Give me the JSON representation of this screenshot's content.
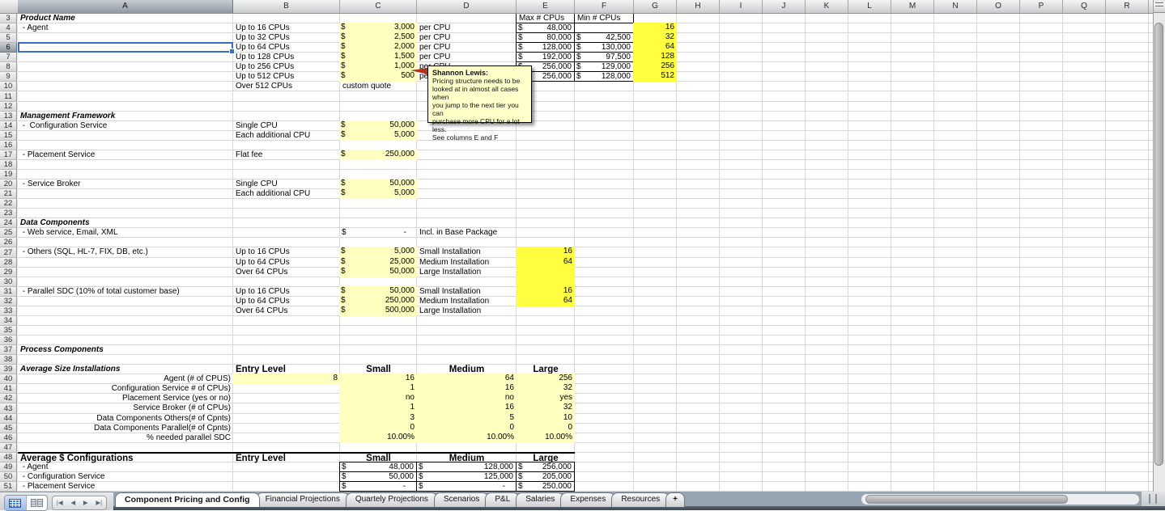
{
  "colors": {
    "fill_pale": "#ffffc0",
    "fill_bright": "#ffff3f",
    "selection_blue": "#3a6fc8",
    "comment_bg": "#ffffca",
    "comment_red": "#b5301c",
    "gridline": "#d7d7d7",
    "tab_bar": "#97a5b2"
  },
  "sheet": {
    "columns": [
      "A",
      "B",
      "C",
      "D",
      "E",
      "F",
      "G",
      "H",
      "I",
      "J",
      "K",
      "L",
      "M",
      "N",
      "O",
      "P",
      "Q",
      "R"
    ],
    "first_row": 3,
    "last_row": 51,
    "currency_symbol": "$",
    "cells": [
      {
        "r": 3,
        "c": "A",
        "v": "Product Name",
        "s": "sec"
      },
      {
        "r": 3,
        "c": "E",
        "v": "Max # CPUs",
        "s": "box"
      },
      {
        "r": 3,
        "c": "F",
        "v": "Min # CPUs",
        "s": "box"
      },
      {
        "r": 4,
        "c": "A",
        "v": " - Agent"
      },
      {
        "r": 4,
        "c": "B",
        "v": "Up to 16 CPUs"
      },
      {
        "r": 4,
        "c": "C",
        "m": "3,000",
        "f": "pale"
      },
      {
        "r": 4,
        "c": "D",
        "v": "per CPU"
      },
      {
        "r": 4,
        "c": "E",
        "m": "48,000",
        "s": "box"
      },
      {
        "r": 4,
        "c": "F",
        "v": "",
        "s": "box"
      },
      {
        "r": 4,
        "c": "G",
        "v": "16",
        "s": "ar",
        "f": "bright"
      },
      {
        "r": 5,
        "c": "B",
        "v": "Up to 32 CPUs"
      },
      {
        "r": 5,
        "c": "C",
        "m": "2,500",
        "f": "pale"
      },
      {
        "r": 5,
        "c": "D",
        "v": "per CPU"
      },
      {
        "r": 5,
        "c": "E",
        "m": "80,000",
        "s": "box"
      },
      {
        "r": 5,
        "c": "F",
        "m": "42,500",
        "s": "box"
      },
      {
        "r": 5,
        "c": "G",
        "v": "32",
        "s": "ar",
        "f": "bright"
      },
      {
        "r": 6,
        "c": "B",
        "v": "Up to 64 CPUs"
      },
      {
        "r": 6,
        "c": "C",
        "m": "2,000",
        "f": "pale"
      },
      {
        "r": 6,
        "c": "D",
        "v": "per CPU"
      },
      {
        "r": 6,
        "c": "E",
        "m": "128,000",
        "s": "box"
      },
      {
        "r": 6,
        "c": "F",
        "m": "130,000",
        "s": "box"
      },
      {
        "r": 6,
        "c": "G",
        "v": "64",
        "s": "ar",
        "f": "bright"
      },
      {
        "r": 7,
        "c": "B",
        "v": "Up to 128 CPUs"
      },
      {
        "r": 7,
        "c": "C",
        "m": "1,500",
        "f": "pale"
      },
      {
        "r": 7,
        "c": "D",
        "v": "per CPU"
      },
      {
        "r": 7,
        "c": "E",
        "m": "192,000",
        "s": "box"
      },
      {
        "r": 7,
        "c": "F",
        "m": "97,500",
        "s": "box"
      },
      {
        "r": 7,
        "c": "G",
        "v": "128",
        "s": "ar",
        "f": "bright"
      },
      {
        "r": 8,
        "c": "B",
        "v": "Up to 256 CPUs"
      },
      {
        "r": 8,
        "c": "C",
        "m": "1,000",
        "f": "pale"
      },
      {
        "r": 8,
        "c": "D",
        "v": "per CPU"
      },
      {
        "r": 8,
        "c": "E",
        "m": "256,000",
        "s": "box"
      },
      {
        "r": 8,
        "c": "F",
        "m": "129,000",
        "s": "box"
      },
      {
        "r": 8,
        "c": "G",
        "v": "256",
        "s": "ar",
        "f": "bright"
      },
      {
        "r": 9,
        "c": "B",
        "v": "Up to 512 CPUs"
      },
      {
        "r": 9,
        "c": "C",
        "m": "500",
        "f": "pale"
      },
      {
        "r": 9,
        "c": "D",
        "v": "per CPU"
      },
      {
        "r": 9,
        "c": "E",
        "m": "256,000",
        "s": "box"
      },
      {
        "r": 9,
        "c": "F",
        "m": "128,000",
        "s": "box"
      },
      {
        "r": 9,
        "c": "G",
        "v": "512",
        "s": "ar",
        "f": "bright"
      },
      {
        "r": 10,
        "c": "B",
        "v": "Over 512 CPUs"
      },
      {
        "r": 10,
        "c": "C",
        "v": "custom quote"
      },
      {
        "r": 13,
        "c": "A",
        "v": "Management Framework",
        "s": "sec"
      },
      {
        "r": 14,
        "c": "A",
        "v": " -  Configuration Service"
      },
      {
        "r": 14,
        "c": "B",
        "v": "Single CPU"
      },
      {
        "r": 14,
        "c": "C",
        "m": "50,000",
        "f": "pale"
      },
      {
        "r": 15,
        "c": "B",
        "v": "Each additional CPU"
      },
      {
        "r": 15,
        "c": "C",
        "m": "5,000",
        "f": "pale"
      },
      {
        "r": 17,
        "c": "A",
        "v": " - Placement Service"
      },
      {
        "r": 17,
        "c": "B",
        "v": "Flat fee"
      },
      {
        "r": 17,
        "c": "C",
        "m": "250,000",
        "f": "pale"
      },
      {
        "r": 20,
        "c": "A",
        "v": " - Service Broker"
      },
      {
        "r": 20,
        "c": "B",
        "v": "Single CPU"
      },
      {
        "r": 20,
        "c": "C",
        "m": "50,000",
        "f": "pale"
      },
      {
        "r": 21,
        "c": "B",
        "v": "Each additional CPU"
      },
      {
        "r": 21,
        "c": "C",
        "m": "5,000",
        "f": "pale"
      },
      {
        "r": 24,
        "c": "A",
        "v": "Data Components",
        "s": "sec"
      },
      {
        "r": 25,
        "c": "A",
        "v": " - Web service, Email, XML"
      },
      {
        "r": 25,
        "c": "C",
        "m": "-"
      },
      {
        "r": 25,
        "c": "D",
        "v": "Incl. in Base Package"
      },
      {
        "r": 27,
        "c": "A",
        "v": " - Others (SQL, HL-7, FIX, DB, etc.)"
      },
      {
        "r": 27,
        "c": "B",
        "v": "Up to 16 CPUs"
      },
      {
        "r": 27,
        "c": "C",
        "m": "5,000",
        "f": "pale"
      },
      {
        "r": 27,
        "c": "D",
        "v": "Small Installation"
      },
      {
        "r": 27,
        "c": "E",
        "v": "16",
        "s": "ar",
        "f": "bright"
      },
      {
        "r": 28,
        "c": "B",
        "v": "Up to 64 CPUs"
      },
      {
        "r": 28,
        "c": "C",
        "m": "25,000",
        "f": "pale"
      },
      {
        "r": 28,
        "c": "D",
        "v": "Medium Installation"
      },
      {
        "r": 28,
        "c": "E",
        "v": "64",
        "s": "ar",
        "f": "bright"
      },
      {
        "r": 29,
        "c": "B",
        "v": "Over 64 CPUs"
      },
      {
        "r": 29,
        "c": "C",
        "m": "50,000",
        "f": "pale"
      },
      {
        "r": 29,
        "c": "D",
        "v": "Large Installation"
      },
      {
        "r": 29,
        "c": "E",
        "v": "",
        "f": "bright"
      },
      {
        "r": 30,
        "c": "E",
        "v": "",
        "f": "bright"
      },
      {
        "r": 31,
        "c": "A",
        "v": " - Parallel SDC (10% of total customer base)"
      },
      {
        "r": 31,
        "c": "B",
        "v": "Up to 16 CPUs"
      },
      {
        "r": 31,
        "c": "C",
        "m": "50,000",
        "f": "pale"
      },
      {
        "r": 31,
        "c": "D",
        "v": "Small Installation"
      },
      {
        "r": 31,
        "c": "E",
        "v": "16",
        "s": "ar",
        "f": "bright"
      },
      {
        "r": 32,
        "c": "B",
        "v": "Up to 64 CPUs"
      },
      {
        "r": 32,
        "c": "C",
        "m": "250,000",
        "f": "pale"
      },
      {
        "r": 32,
        "c": "D",
        "v": "Medium Installation"
      },
      {
        "r": 32,
        "c": "E",
        "v": "64",
        "s": "ar",
        "f": "bright"
      },
      {
        "r": 33,
        "c": "B",
        "v": "Over 64 CPUs"
      },
      {
        "r": 33,
        "c": "C",
        "m": "500,000",
        "f": "pale"
      },
      {
        "r": 33,
        "c": "D",
        "v": "Large Installation"
      },
      {
        "r": 37,
        "c": "A",
        "v": "Process Components",
        "s": "sec"
      },
      {
        "r": 39,
        "c": "A",
        "v": "Average Size Installations",
        "s": "sec"
      },
      {
        "r": 39,
        "c": "B",
        "v": "Entry Level",
        "s": "hdr bb"
      },
      {
        "r": 39,
        "c": "C",
        "v": "Small",
        "s": "hdrc bb"
      },
      {
        "r": 39,
        "c": "D",
        "v": "Medium",
        "s": "hdrc bb"
      },
      {
        "r": 39,
        "c": "E",
        "v": "Large",
        "s": "hdrc bb"
      },
      {
        "r": 40,
        "c": "A",
        "v": "Agent (# of CPUS)",
        "s": "ar"
      },
      {
        "r": 40,
        "c": "B",
        "v": "8",
        "s": "ar",
        "f": "pale"
      },
      {
        "r": 40,
        "c": "C",
        "v": "16",
        "s": "ar",
        "f": "pale"
      },
      {
        "r": 40,
        "c": "D",
        "v": "64",
        "s": "ar",
        "f": "pale"
      },
      {
        "r": 40,
        "c": "E",
        "v": "256",
        "s": "ar",
        "f": "pale"
      },
      {
        "r": 41,
        "c": "A",
        "v": "Configuration Service # of CPUs)",
        "s": "ar"
      },
      {
        "r": 41,
        "c": "C",
        "v": "1",
        "s": "ar",
        "f": "pale"
      },
      {
        "r": 41,
        "c": "D",
        "v": "16",
        "s": "ar",
        "f": "pale"
      },
      {
        "r": 41,
        "c": "E",
        "v": "32",
        "s": "ar",
        "f": "pale"
      },
      {
        "r": 42,
        "c": "A",
        "v": "Placement Service (yes or no)",
        "s": "ar"
      },
      {
        "r": 42,
        "c": "C",
        "v": "no",
        "s": "ar",
        "f": "pale"
      },
      {
        "r": 42,
        "c": "D",
        "v": "no",
        "s": "ar",
        "f": "pale"
      },
      {
        "r": 42,
        "c": "E",
        "v": "yes",
        "s": "ar",
        "f": "pale"
      },
      {
        "r": 43,
        "c": "A",
        "v": "Service Broker (# of CPUs)",
        "s": "ar"
      },
      {
        "r": 43,
        "c": "C",
        "v": "1",
        "s": "ar",
        "f": "pale"
      },
      {
        "r": 43,
        "c": "D",
        "v": "16",
        "s": "ar",
        "f": "pale"
      },
      {
        "r": 43,
        "c": "E",
        "v": "32",
        "s": "ar",
        "f": "pale"
      },
      {
        "r": 44,
        "c": "A",
        "v": "Data Components Others(# of Cpnts)",
        "s": "ar"
      },
      {
        "r": 44,
        "c": "C",
        "v": "3",
        "s": "ar",
        "f": "pale"
      },
      {
        "r": 44,
        "c": "D",
        "v": "5",
        "s": "ar",
        "f": "pale"
      },
      {
        "r": 44,
        "c": "E",
        "v": "10",
        "s": "ar",
        "f": "pale"
      },
      {
        "r": 45,
        "c": "A",
        "v": "Data Components Parallel(# of Cpnts)",
        "s": "ar"
      },
      {
        "r": 45,
        "c": "C",
        "v": "0",
        "s": "ar",
        "f": "pale"
      },
      {
        "r": 45,
        "c": "D",
        "v": "0",
        "s": "ar",
        "f": "pale"
      },
      {
        "r": 45,
        "c": "E",
        "v": "0",
        "s": "ar",
        "f": "pale"
      },
      {
        "r": 46,
        "c": "A",
        "v": "% needed parallel SDC",
        "s": "ar"
      },
      {
        "r": 46,
        "c": "C",
        "v": "10.00%",
        "s": "ar",
        "f": "pale"
      },
      {
        "r": 46,
        "c": "D",
        "v": "10.00%",
        "s": "ar",
        "f": "pale"
      },
      {
        "r": 46,
        "c": "E",
        "v": "10.00%",
        "s": "ar",
        "f": "pale"
      },
      {
        "r": 48,
        "c": "A",
        "v": "Average $ Configurations",
        "s": "hdr bt"
      },
      {
        "r": 48,
        "c": "B",
        "v": "Entry Level",
        "s": "hdr bt"
      },
      {
        "r": 48,
        "c": "C",
        "v": "Small",
        "s": "hdrc bt"
      },
      {
        "r": 48,
        "c": "D",
        "v": "Medium",
        "s": "hdrc bt"
      },
      {
        "r": 48,
        "c": "E",
        "v": "Large",
        "s": "hdrc bt"
      },
      {
        "r": 49,
        "c": "A",
        "v": " - Agent"
      },
      {
        "r": 49,
        "c": "C",
        "m": "48,000",
        "s": "box"
      },
      {
        "r": 49,
        "c": "D",
        "m": "128,000",
        "s": "box"
      },
      {
        "r": 49,
        "c": "E",
        "m": "256,000",
        "s": "box"
      },
      {
        "r": 50,
        "c": "A",
        "v": " - Configuration Service"
      },
      {
        "r": 50,
        "c": "C",
        "m": "50,000",
        "s": "box"
      },
      {
        "r": 50,
        "c": "D",
        "m": "125,000",
        "s": "box"
      },
      {
        "r": 50,
        "c": "E",
        "m": "205,000",
        "s": "box"
      },
      {
        "r": 51,
        "c": "A",
        "v": " - Placement Service"
      },
      {
        "r": 51,
        "c": "C",
        "m": "-",
        "s": "box"
      },
      {
        "r": 51,
        "c": "D",
        "m": "-",
        "s": "box"
      },
      {
        "r": 51,
        "c": "E",
        "m": "250,000",
        "s": "box"
      }
    ]
  },
  "selection": {
    "column": "A",
    "row": 6
  },
  "comment": {
    "author": "Shannon Lewis:",
    "lines": [
      "Pricing structure needs to be",
      "looked at in almost all cases when",
      "you jump to the next tier you can",
      "purchase more CPU for a lot less.",
      "See columns E and F"
    ]
  },
  "tabs": {
    "active_index": 0,
    "items": [
      "Component Pricing and Config",
      "Financial Projections",
      "Quartely Projections",
      "Scenarios",
      "P&L",
      "Salaries",
      "Expenses",
      "Resources"
    ],
    "add_label": "+"
  },
  "nav": {
    "first": "|◀",
    "prev": "◀",
    "next": "▶",
    "last": "▶|"
  }
}
